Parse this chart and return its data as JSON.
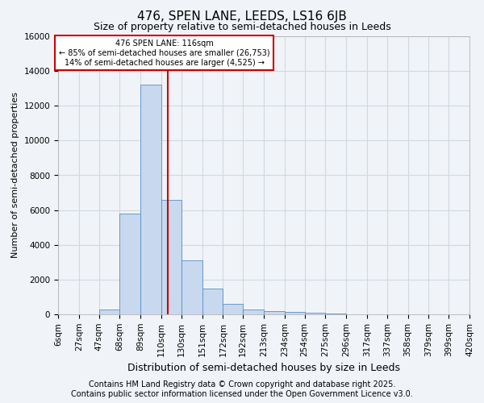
{
  "title": "476, SPEN LANE, LEEDS, LS16 6JB",
  "subtitle": "Size of property relative to semi-detached houses in Leeds",
  "xlabel": "Distribution of semi-detached houses by size in Leeds",
  "ylabel": "Number of semi-detached properties",
  "annotation_title": "476 SPEN LANE: 116sqm",
  "annotation_line1": "← 85% of semi-detached houses are smaller (26,753)",
  "annotation_line2": "14% of semi-detached houses are larger (4,525) →",
  "footer_line1": "Contains HM Land Registry data © Crown copyright and database right 2025.",
  "footer_line2": "Contains public sector information licensed under the Open Government Licence v3.0.",
  "bin_edges": [
    6,
    27,
    47,
    68,
    89,
    110,
    130,
    151,
    172,
    192,
    213,
    234,
    254,
    275,
    296,
    317,
    337,
    358,
    379,
    399,
    420
  ],
  "bar_heights": [
    0,
    0,
    300,
    5800,
    13200,
    6600,
    3100,
    1500,
    600,
    300,
    200,
    150,
    100,
    50,
    0,
    0,
    0,
    0,
    0,
    0
  ],
  "property_size": 116,
  "ylim": [
    0,
    16000
  ],
  "bar_color": "#c8d8ee",
  "bar_edge_color": "#5590c8",
  "vline_color": "#cc0000",
  "annotation_box_color": "#cc0000",
  "background_color": "#f0f4f8",
  "grid_color": "#d0d8e0",
  "title_fontsize": 11,
  "subtitle_fontsize": 9,
  "tick_label_fontsize": 7.5,
  "ylabel_fontsize": 8,
  "xlabel_fontsize": 9,
  "footer_fontsize": 7
}
